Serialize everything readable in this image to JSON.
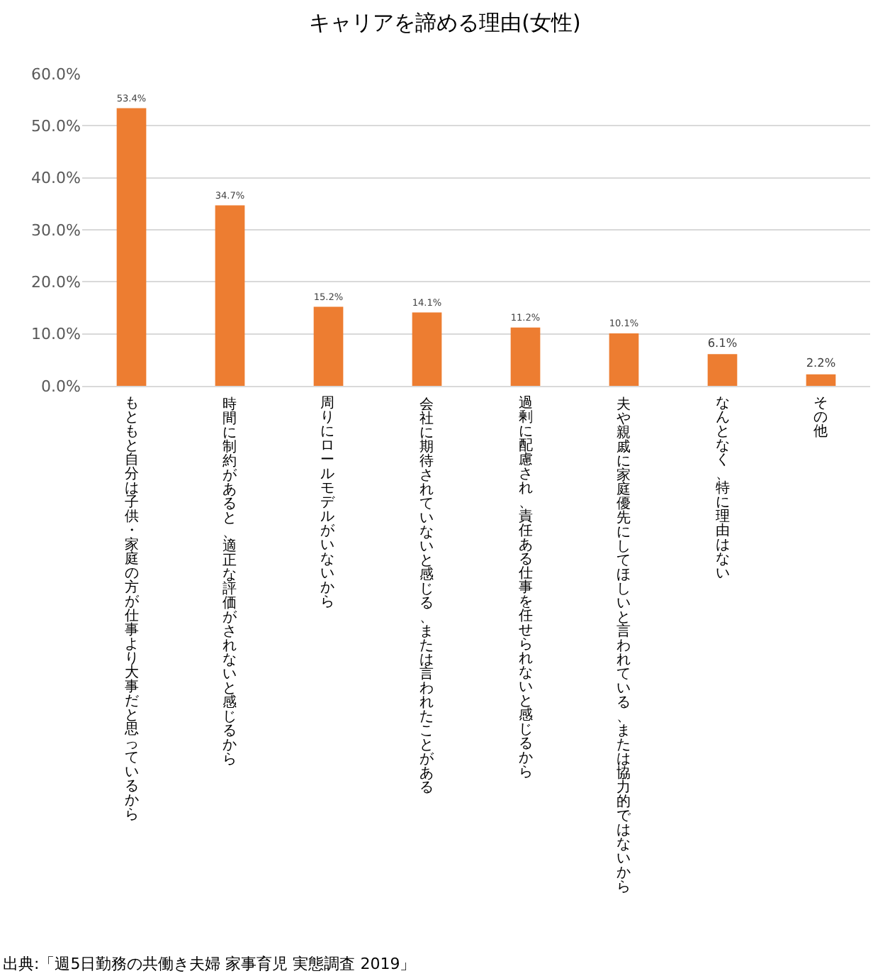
{
  "chart_data": {
    "type": "bar",
    "title": "キャリアを諦める理由(女性)",
    "categories": [
      "もともと自分は子供・家庭の方が仕事より大事だと思っているから",
      "時間に制約があると、適正な評価がされないと感じるから",
      "周りにロールモデルがいないから",
      "会社に期待されていないと感じる、または言われたことがある",
      "過剰に配慮され、責任ある仕事を任せられないと感じるから",
      "夫や親戚に家庭優先にしてほしいと言われている、または協力的ではないから",
      "なんとなく、特に理由はない",
      "その他"
    ],
    "values": [
      53.4,
      34.7,
      15.2,
      14.1,
      11.2,
      10.1,
      6.1,
      2.2
    ],
    "value_labels": [
      "53.4%",
      "34.7%",
      "15.2%",
      "14.1%",
      "11.2%",
      "10.1%",
      "6.1%",
      "2.2%"
    ],
    "color": "#ed7d31",
    "ylim": [
      0,
      60
    ],
    "yticks": [
      {
        "value": 0,
        "label": "0.0%"
      },
      {
        "value": 10,
        "label": "10.0%"
      },
      {
        "value": 20,
        "label": "20.0%"
      },
      {
        "value": 30,
        "label": "30.0%"
      },
      {
        "value": 40,
        "label": "40.0%"
      },
      {
        "value": 50,
        "label": "50.0%"
      },
      {
        "value": 60,
        "label": "60.0%"
      }
    ],
    "grid": "y",
    "legend": false,
    "annotations": [
      "出典:「週5日勤務の共働き夫婦 家事育児 実態調査 2019」"
    ]
  }
}
